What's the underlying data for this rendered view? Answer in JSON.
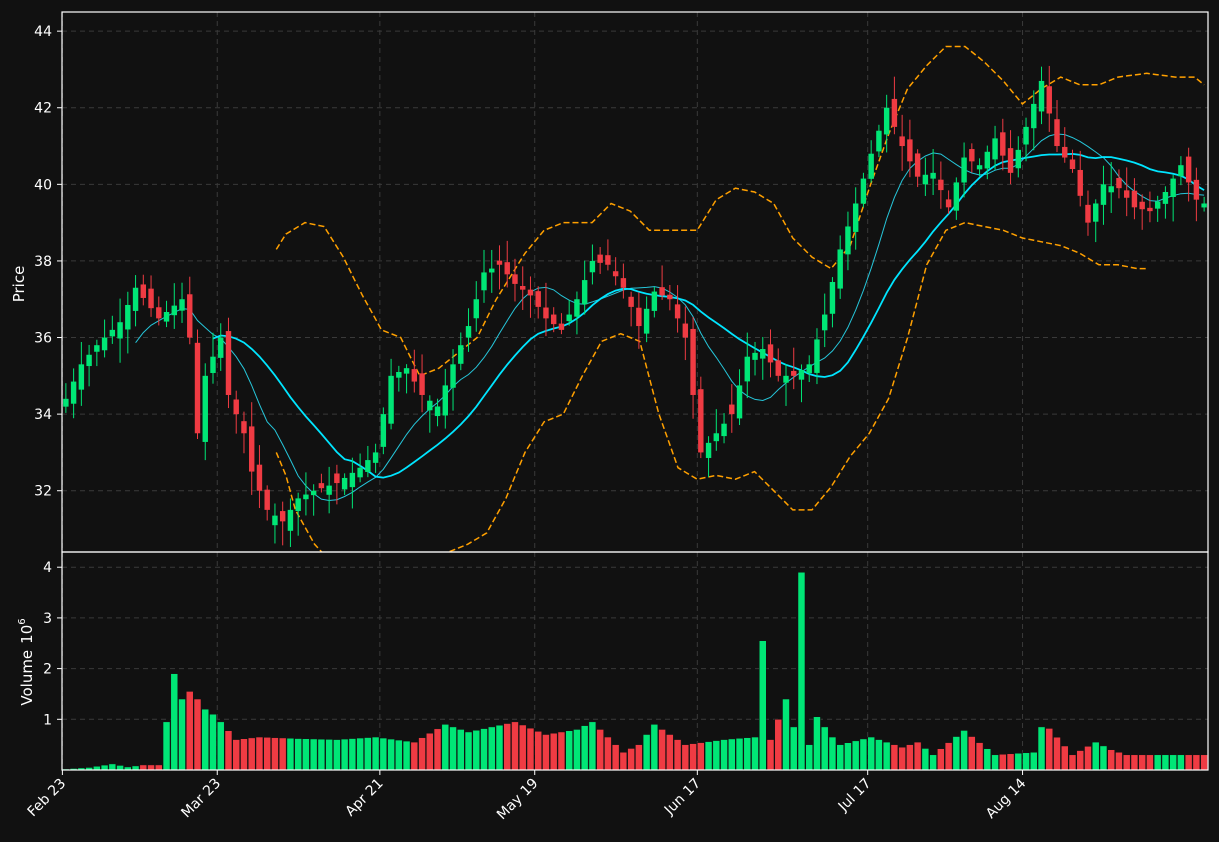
{
  "chart_data": {
    "type": "candlestick",
    "x_tick_labels": [
      "Feb 23",
      "Mar 23",
      "Apr 21",
      "May 19",
      "Jun 17",
      "Jul 17",
      "Aug 14"
    ],
    "price_panel": {
      "ylabel": "Price",
      "yticks": [
        "32",
        "34",
        "36",
        "38",
        "40",
        "42",
        "44"
      ],
      "ylim": [
        30.4,
        44.5
      ],
      "grid": true
    },
    "volume_panel": {
      "ylabel": "Volume",
      "ylabel_exponent": "6",
      "yticks": [
        "1",
        "2",
        "3",
        "4"
      ],
      "ylim": [
        0,
        4.3
      ],
      "unit_multiplier": 1000000,
      "grid": true
    },
    "colors": {
      "background": "#111111",
      "up": "#00e676",
      "down": "#ef3b43",
      "ma_fast": "#26c6da",
      "ma_slow": "#00e5ff",
      "bands": "#ffa000",
      "grid": "#3a3a3a",
      "text": "#ffffff"
    },
    "series_styles": [
      {
        "key": "ma10",
        "style": "thin solid",
        "color": "#26c6da"
      },
      {
        "key": "ma20",
        "style": "solid",
        "color": "#00e5ff"
      },
      {
        "key": "bollinger_upper",
        "style": "dashed",
        "color": "#ffa000"
      },
      {
        "key": "bollinger_lower",
        "style": "dashed",
        "color": "#ffa000"
      }
    ],
    "key_prices": [
      [
        0,
        34.4
      ],
      [
        2,
        35.3
      ],
      [
        4,
        35.8
      ],
      [
        7,
        36.4
      ],
      [
        9,
        37.3
      ],
      [
        12,
        36.5
      ],
      [
        15,
        37.0
      ],
      [
        16,
        36.0
      ],
      [
        17,
        33.5
      ],
      [
        18,
        35.0
      ],
      [
        20,
        36.0
      ],
      [
        21,
        34.5
      ],
      [
        23,
        33.5
      ],
      [
        24,
        32.5
      ],
      [
        26,
        31.5
      ],
      [
        28,
        31.2
      ],
      [
        30,
        31.8
      ],
      [
        32,
        32.0
      ],
      [
        35,
        32.2
      ],
      [
        38,
        32.6
      ],
      [
        40,
        33.0
      ],
      [
        42,
        35.0
      ],
      [
        44,
        35.2
      ],
      [
        46,
        34.5
      ],
      [
        48,
        34.2
      ],
      [
        50,
        35.3
      ],
      [
        52,
        36.3
      ],
      [
        54,
        37.7
      ],
      [
        56,
        37.9
      ],
      [
        58,
        37.4
      ],
      [
        60,
        37.1
      ],
      [
        62,
        36.5
      ],
      [
        64,
        36.2
      ],
      [
        66,
        37.0
      ],
      [
        68,
        38.0
      ],
      [
        70,
        37.9
      ],
      [
        72,
        37.3
      ],
      [
        74,
        36.3
      ],
      [
        76,
        37.2
      ],
      [
        78,
        37.0
      ],
      [
        80,
        36.0
      ],
      [
        82,
        33.0
      ],
      [
        84,
        33.5
      ],
      [
        86,
        34.0
      ],
      [
        88,
        35.5
      ],
      [
        90,
        35.7
      ],
      [
        92,
        35.0
      ],
      [
        94,
        35.0
      ],
      [
        96,
        35.3
      ],
      [
        98,
        36.6
      ],
      [
        100,
        38.3
      ],
      [
        102,
        39.5
      ],
      [
        104,
        40.8
      ],
      [
        106,
        42.0
      ],
      [
        108,
        41.0
      ],
      [
        110,
        40.2
      ],
      [
        112,
        40.3
      ],
      [
        114,
        39.4
      ],
      [
        116,
        40.7
      ],
      [
        118,
        40.5
      ],
      [
        120,
        41.2
      ],
      [
        122,
        40.3
      ],
      [
        124,
        41.5
      ],
      [
        126,
        42.7
      ],
      [
        128,
        41.0
      ],
      [
        130,
        40.4
      ],
      [
        132,
        39.0
      ],
      [
        134,
        40.0
      ],
      [
        136,
        39.9
      ],
      [
        138,
        39.4
      ],
      [
        140,
        39.3
      ],
      [
        142,
        39.8
      ],
      [
        144,
        40.5
      ],
      [
        146,
        39.6
      ],
      [
        147,
        39.5
      ]
    ],
    "key_volumes_millions": [
      [
        0,
        0.02
      ],
      [
        3,
        0.05
      ],
      [
        6,
        0.12
      ],
      [
        8,
        0.06
      ],
      [
        10,
        0.1
      ],
      [
        12,
        0.1
      ],
      [
        13,
        0.95
      ],
      [
        14,
        1.9
      ],
      [
        15,
        1.4
      ],
      [
        16,
        1.55
      ],
      [
        17,
        1.4
      ],
      [
        18,
        1.2
      ],
      [
        19,
        1.1
      ],
      [
        20,
        0.95
      ],
      [
        22,
        0.6
      ],
      [
        25,
        0.65
      ],
      [
        30,
        0.62
      ],
      [
        35,
        0.6
      ],
      [
        40,
        0.65
      ],
      [
        45,
        0.55
      ],
      [
        49,
        0.9
      ],
      [
        52,
        0.75
      ],
      [
        58,
        0.95
      ],
      [
        62,
        0.7
      ],
      [
        66,
        0.8
      ],
      [
        68,
        0.95
      ],
      [
        72,
        0.35
      ],
      [
        74,
        0.5
      ],
      [
        76,
        0.9
      ],
      [
        80,
        0.5
      ],
      [
        85,
        0.6
      ],
      [
        89,
        0.65
      ],
      [
        90,
        2.55
      ],
      [
        91,
        0.6
      ],
      [
        93,
        1.4
      ],
      [
        94,
        0.85
      ],
      [
        95,
        3.9
      ],
      [
        96,
        0.5
      ],
      [
        97,
        1.05
      ],
      [
        98,
        0.85
      ],
      [
        99,
        0.65
      ],
      [
        100,
        0.5
      ],
      [
        104,
        0.65
      ],
      [
        108,
        0.45
      ],
      [
        110,
        0.55
      ],
      [
        112,
        0.3
      ],
      [
        116,
        0.78
      ],
      [
        120,
        0.3
      ],
      [
        125,
        0.35
      ],
      [
        126,
        0.85
      ],
      [
        127,
        0.82
      ],
      [
        130,
        0.3
      ],
      [
        133,
        0.55
      ],
      [
        135,
        0.4
      ],
      [
        137,
        0.3
      ]
    ],
    "bollinger_upper_key": [
      [
        22,
        38.3
      ],
      [
        23,
        38.7
      ],
      [
        25,
        39.0
      ],
      [
        27,
        38.9
      ],
      [
        29,
        38.1
      ],
      [
        31,
        37.1
      ],
      [
        33,
        36.2
      ],
      [
        35,
        36.0
      ],
      [
        37,
        35.0
      ],
      [
        39,
        35.2
      ],
      [
        41,
        35.6
      ],
      [
        43,
        36.0
      ],
      [
        45,
        37.0
      ],
      [
        48,
        38.2
      ],
      [
        50,
        38.8
      ],
      [
        52,
        39.0
      ],
      [
        55,
        39.0
      ],
      [
        57,
        39.5
      ],
      [
        59,
        39.3
      ],
      [
        61,
        38.8
      ],
      [
        63,
        38.8
      ],
      [
        66,
        38.8
      ],
      [
        68,
        39.6
      ],
      [
        70,
        39.9
      ],
      [
        72,
        39.8
      ],
      [
        74,
        39.5
      ],
      [
        76,
        38.6
      ],
      [
        78,
        38.1
      ],
      [
        80,
        37.8
      ],
      [
        82,
        38.4
      ],
      [
        84,
        39.9
      ],
      [
        86,
        41.3
      ],
      [
        88,
        42.5
      ],
      [
        90,
        43.1
      ],
      [
        92,
        43.6
      ],
      [
        94,
        43.6
      ],
      [
        96,
        43.2
      ],
      [
        98,
        42.7
      ],
      [
        100,
        42.1
      ],
      [
        102,
        42.5
      ],
      [
        104,
        42.8
      ],
      [
        106,
        42.6
      ],
      [
        108,
        42.6
      ],
      [
        110,
        42.8
      ],
      [
        113,
        42.9
      ],
      [
        116,
        42.8
      ],
      [
        118,
        42.8
      ],
      [
        119,
        42.6
      ]
    ],
    "bollinger_lower_key": [
      [
        22,
        33.0
      ],
      [
        23,
        32.4
      ],
      [
        24,
        31.5
      ],
      [
        26,
        30.6
      ],
      [
        29,
        29.8
      ],
      [
        33,
        29.0
      ],
      [
        38,
        29.8
      ],
      [
        40,
        30.4
      ],
      [
        42,
        30.6
      ],
      [
        44,
        30.9
      ],
      [
        46,
        31.8
      ],
      [
        48,
        33.0
      ],
      [
        50,
        33.8
      ],
      [
        52,
        34.0
      ],
      [
        54,
        35.0
      ],
      [
        56,
        35.9
      ],
      [
        58,
        36.1
      ],
      [
        60,
        35.9
      ],
      [
        62,
        34.0
      ],
      [
        64,
        32.6
      ],
      [
        66,
        32.3
      ],
      [
        68,
        32.4
      ],
      [
        70,
        32.3
      ],
      [
        72,
        32.5
      ],
      [
        74,
        32.0
      ],
      [
        76,
        31.5
      ],
      [
        78,
        31.5
      ],
      [
        80,
        32.1
      ],
      [
        82,
        32.9
      ],
      [
        84,
        33.5
      ],
      [
        86,
        34.4
      ],
      [
        88,
        36.0
      ],
      [
        90,
        37.9
      ],
      [
        92,
        38.8
      ],
      [
        94,
        39.0
      ],
      [
        96,
        38.9
      ],
      [
        98,
        38.8
      ],
      [
        100,
        38.6
      ],
      [
        102,
        38.5
      ],
      [
        104,
        38.4
      ],
      [
        106,
        38.2
      ],
      [
        108,
        37.9
      ],
      [
        110,
        37.9
      ],
      [
        112,
        37.8
      ],
      [
        113,
        37.8
      ]
    ]
  }
}
